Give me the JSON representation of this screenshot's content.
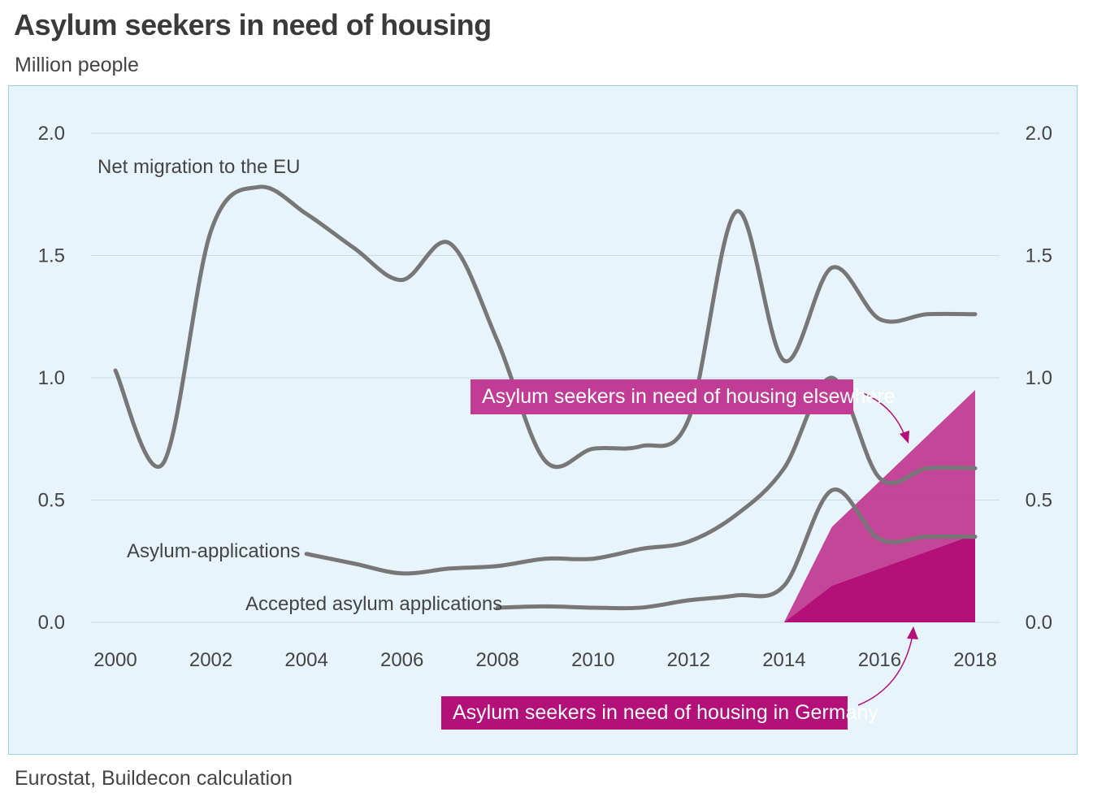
{
  "title": "Asylum seekers in need of housing",
  "subtitle": "Million people",
  "source": "Eurostat, Buildecon calculation",
  "colors": {
    "panel_background": "#e8f4fc",
    "line": "#777777",
    "elsewhere_area": "#c13c94",
    "germany_area": "#b3107a",
    "callout_elsewhere": "#c13c94",
    "callout_germany": "#b3107a"
  },
  "chart_data": {
    "type": "line",
    "x_ticks": [
      "2000",
      "2002",
      "2004",
      "2006",
      "2008",
      "2010",
      "2012",
      "2014",
      "2016",
      "2018"
    ],
    "y_ticks_left": [
      "2.0",
      "1.5",
      "1.0",
      "0.5",
      "0.0"
    ],
    "y_ticks_right": [
      "2.0",
      "1.5",
      "1.0",
      "0.5",
      "0.0"
    ],
    "xlim": [
      2000,
      2018
    ],
    "ylim": [
      0,
      2.0
    ],
    "grid": "horizontal",
    "series": [
      {
        "name": "Net migration to the EU",
        "x": [
          2000,
          2001,
          2002,
          2003,
          2004,
          2005,
          2006,
          2007,
          2008,
          2009,
          2010,
          2011,
          2012,
          2013,
          2014,
          2015,
          2016,
          2017,
          2018
        ],
        "values": [
          1.03,
          0.65,
          1.6,
          1.78,
          1.67,
          1.53,
          1.4,
          1.55,
          1.15,
          0.66,
          0.71,
          0.72,
          0.83,
          1.68,
          1.07,
          1.45,
          1.24,
          1.26,
          1.26
        ]
      },
      {
        "name": "Asylum-applications",
        "x": [
          2004,
          2005,
          2006,
          2007,
          2008,
          2009,
          2010,
          2011,
          2012,
          2013,
          2014,
          2015,
          2016,
          2017,
          2018
        ],
        "values": [
          0.28,
          0.24,
          0.2,
          0.22,
          0.23,
          0.26,
          0.26,
          0.3,
          0.33,
          0.44,
          0.63,
          1.0,
          0.59,
          0.63,
          0.63
        ]
      },
      {
        "name": "Accepted asylum applications",
        "x": [
          2008,
          2009,
          2010,
          2011,
          2012,
          2013,
          2014,
          2015,
          2016,
          2017,
          2018
        ],
        "values": [
          0.06,
          0.065,
          0.06,
          0.06,
          0.09,
          0.11,
          0.15,
          0.54,
          0.34,
          0.35,
          0.35
        ]
      }
    ],
    "areas": [
      {
        "name": "Asylum seekers in need of housing elsewhere",
        "x": [
          2014,
          2015,
          2018
        ],
        "lower": [
          0.0,
          0.15,
          0.36
        ],
        "upper": [
          0.0,
          0.39,
          0.95
        ]
      },
      {
        "name": "Asylum seekers in need of housing in Germany",
        "x": [
          2014,
          2015,
          2018
        ],
        "lower": [
          0.0,
          0.0,
          0.0
        ],
        "upper": [
          0.0,
          0.15,
          0.36
        ]
      }
    ],
    "callouts": {
      "elsewhere": "Asylum seekers in need of housing elsewhere",
      "germany": "Asylum seekers in need of housing in Germany"
    }
  }
}
